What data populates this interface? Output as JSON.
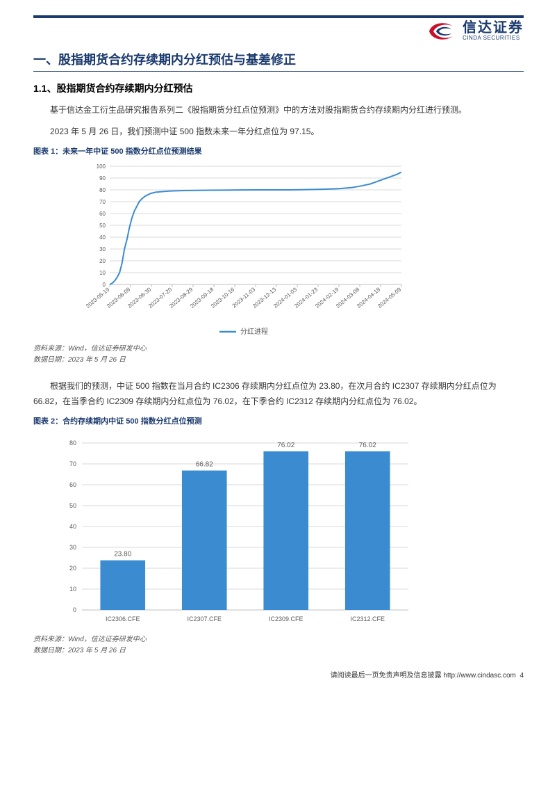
{
  "logo": {
    "cn": "信达证券",
    "en": "CINDA SECURITIES"
  },
  "h1": "一、股指期货合约存续期内分红预估与基差修正",
  "h2": "1.1、股指期货合约存续期内分红预估",
  "para1": "基于信达金工衍生品研究报告系列二《股指期货分红点位预测》中的方法对股指期货合约存续期内分红进行预测。",
  "para2": "2023 年 5 月 26 日，我们预测中证 500 指数未来一年分红点位为 97.15。",
  "para3": "根据我们的预测，中证 500 指数在当月合约 IC2306 存续期内分红点位为 23.80，在次月合约 IC2307 存续期内分红点位为 66.82，在当季合约 IC2309 存续期内分红点位为 76.02，在下季合约 IC2312 存续期内分红点位为 76.02。",
  "source1_line1": "资料来源：Wind，信达证券研发中心",
  "source1_line2": "数据日期：2023 年 5 月 26 日",
  "chart1": {
    "title": "图表 1：未来一年中证 500 指数分红点位预测结果",
    "type": "line",
    "legend_label": "分红进程",
    "ylim": [
      0,
      100
    ],
    "ytick_step": 10,
    "x_labels": [
      "2023-05-19",
      "2023-06-08",
      "2023-06-30",
      "2023-07-20",
      "2023-08-29",
      "2023-09-18",
      "2023-10-16",
      "2023-11-03",
      "2023-12-13",
      "2024-01-03",
      "2024-01-23",
      "2024-02-19",
      "2024-03-08",
      "2024-04-18",
      "2024-05-09"
    ],
    "line_color": "#3b8bd0",
    "grid_color": "#d9d9d9",
    "axis_color": "#bfbfbf",
    "label_fontsize": 8,
    "tick_fontsize": 8,
    "points": [
      [
        0,
        0
      ],
      [
        3,
        1
      ],
      [
        6,
        3
      ],
      [
        9,
        6
      ],
      [
        12,
        10
      ],
      [
        15,
        18
      ],
      [
        18,
        30
      ],
      [
        21,
        38
      ],
      [
        24,
        48
      ],
      [
        27,
        56
      ],
      [
        30,
        62
      ],
      [
        33,
        66
      ],
      [
        36,
        70
      ],
      [
        40,
        73
      ],
      [
        44,
        75
      ],
      [
        50,
        77
      ],
      [
        56,
        78
      ],
      [
        64,
        78.5
      ],
      [
        72,
        79
      ],
      [
        80,
        79.2
      ],
      [
        90,
        79.4
      ],
      [
        100,
        79.5
      ],
      [
        120,
        79.7
      ],
      [
        140,
        79.8
      ],
      [
        160,
        79.9
      ],
      [
        180,
        80
      ],
      [
        200,
        80
      ],
      [
        220,
        80
      ],
      [
        240,
        80.2
      ],
      [
        260,
        80.5
      ],
      [
        280,
        81
      ],
      [
        296,
        82
      ],
      [
        308,
        83.5
      ],
      [
        318,
        85
      ],
      [
        326,
        87
      ],
      [
        334,
        89
      ],
      [
        342,
        91
      ],
      [
        350,
        93
      ],
      [
        356,
        95
      ]
    ],
    "points_x_max": 356
  },
  "chart2": {
    "title": "图表 2：合约存续期内中证 500 指数分红点位预测",
    "type": "bar",
    "categories": [
      "IC2306.CFE",
      "IC2307.CFE",
      "IC2309.CFE",
      "IC2312.CFE"
    ],
    "values": [
      23.8,
      66.82,
      76.02,
      76.02
    ],
    "value_labels": [
      "23.80",
      "66.82",
      "76.02",
      "76.02"
    ],
    "ylim": [
      0,
      80
    ],
    "ytick_step": 10,
    "bar_color": "#3b8bd0",
    "grid_color": "#d9d9d9",
    "axis_color": "#bfbfbf",
    "label_fontsize": 9,
    "bar_width": 0.55
  },
  "footer": {
    "text": "请阅读最后一页免责声明及信息披露 ",
    "url": "http://www.cindasc.com",
    "page": "4"
  },
  "colors": {
    "brand_navy": "#1a3a6e",
    "brand_red": "#c8102e",
    "text": "#333333"
  }
}
